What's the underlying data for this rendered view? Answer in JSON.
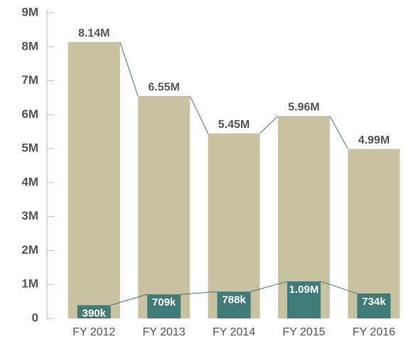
{
  "chart_data": {
    "type": "bar",
    "categories": [
      "FY 2012",
      "FY 2013",
      "FY 2014",
      "FY 2015",
      "FY 2016"
    ],
    "series": [
      {
        "color": "#c9c2a0",
        "values": [
          8140000,
          6550000,
          5450000,
          5960000,
          4990000
        ],
        "value_labels": [
          "8.14M",
          "6.55M",
          "5.45M",
          "5.96M",
          "4.99M"
        ]
      },
      {
        "color": "#3f7b77",
        "values": [
          390000,
          709000,
          788000,
          1090000,
          734000
        ],
        "value_labels": [
          "390k",
          "709k",
          "788k",
          "1.09M",
          "734k"
        ]
      }
    ],
    "ylim": [
      0,
      9000000
    ],
    "yticks": [
      0,
      {
        "value": 1000000,
        "label": "1M"
      },
      {
        "value": 2000000,
        "label": "2M"
      },
      {
        "value": 3000000,
        "label": "3M"
      },
      {
        "value": 4000000,
        "label": "4M"
      },
      {
        "value": 5000000,
        "label": "5M"
      },
      {
        "value": 6000000,
        "label": "6M"
      },
      {
        "value": 7000000,
        "label": "7M"
      },
      {
        "value": 8000000,
        "label": "8M"
      },
      {
        "value": 9000000,
        "label": "9M"
      }
    ]
  }
}
